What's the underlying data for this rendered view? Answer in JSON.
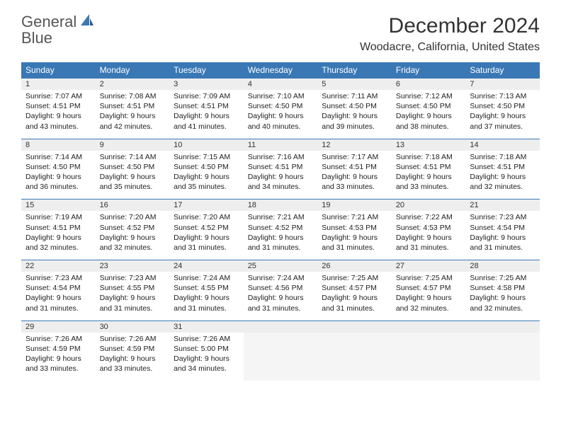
{
  "logo": {
    "word1": "General",
    "word2": "Blue"
  },
  "title": "December 2024",
  "location": "Woodacre, California, United States",
  "columns": [
    "Sunday",
    "Monday",
    "Tuesday",
    "Wednesday",
    "Thursday",
    "Friday",
    "Saturday"
  ],
  "colors": {
    "header_bg": "#3a78b5",
    "header_text": "#ffffff",
    "daynum_bg": "#eeeeee",
    "border": "#3a78b5",
    "text": "#222222",
    "logo_gray": "#555555",
    "logo_blue": "#3a78b5",
    "empty_bg": "#f5f5f5"
  },
  "weeks": [
    [
      {
        "n": "1",
        "sr": "Sunrise: 7:07 AM",
        "ss": "Sunset: 4:51 PM",
        "dl": "Daylight: 9 hours and 43 minutes."
      },
      {
        "n": "2",
        "sr": "Sunrise: 7:08 AM",
        "ss": "Sunset: 4:51 PM",
        "dl": "Daylight: 9 hours and 42 minutes."
      },
      {
        "n": "3",
        "sr": "Sunrise: 7:09 AM",
        "ss": "Sunset: 4:51 PM",
        "dl": "Daylight: 9 hours and 41 minutes."
      },
      {
        "n": "4",
        "sr": "Sunrise: 7:10 AM",
        "ss": "Sunset: 4:50 PM",
        "dl": "Daylight: 9 hours and 40 minutes."
      },
      {
        "n": "5",
        "sr": "Sunrise: 7:11 AM",
        "ss": "Sunset: 4:50 PM",
        "dl": "Daylight: 9 hours and 39 minutes."
      },
      {
        "n": "6",
        "sr": "Sunrise: 7:12 AM",
        "ss": "Sunset: 4:50 PM",
        "dl": "Daylight: 9 hours and 38 minutes."
      },
      {
        "n": "7",
        "sr": "Sunrise: 7:13 AM",
        "ss": "Sunset: 4:50 PM",
        "dl": "Daylight: 9 hours and 37 minutes."
      }
    ],
    [
      {
        "n": "8",
        "sr": "Sunrise: 7:14 AM",
        "ss": "Sunset: 4:50 PM",
        "dl": "Daylight: 9 hours and 36 minutes."
      },
      {
        "n": "9",
        "sr": "Sunrise: 7:14 AM",
        "ss": "Sunset: 4:50 PM",
        "dl": "Daylight: 9 hours and 35 minutes."
      },
      {
        "n": "10",
        "sr": "Sunrise: 7:15 AM",
        "ss": "Sunset: 4:50 PM",
        "dl": "Daylight: 9 hours and 35 minutes."
      },
      {
        "n": "11",
        "sr": "Sunrise: 7:16 AM",
        "ss": "Sunset: 4:51 PM",
        "dl": "Daylight: 9 hours and 34 minutes."
      },
      {
        "n": "12",
        "sr": "Sunrise: 7:17 AM",
        "ss": "Sunset: 4:51 PM",
        "dl": "Daylight: 9 hours and 33 minutes."
      },
      {
        "n": "13",
        "sr": "Sunrise: 7:18 AM",
        "ss": "Sunset: 4:51 PM",
        "dl": "Daylight: 9 hours and 33 minutes."
      },
      {
        "n": "14",
        "sr": "Sunrise: 7:18 AM",
        "ss": "Sunset: 4:51 PM",
        "dl": "Daylight: 9 hours and 32 minutes."
      }
    ],
    [
      {
        "n": "15",
        "sr": "Sunrise: 7:19 AM",
        "ss": "Sunset: 4:51 PM",
        "dl": "Daylight: 9 hours and 32 minutes."
      },
      {
        "n": "16",
        "sr": "Sunrise: 7:20 AM",
        "ss": "Sunset: 4:52 PM",
        "dl": "Daylight: 9 hours and 32 minutes."
      },
      {
        "n": "17",
        "sr": "Sunrise: 7:20 AM",
        "ss": "Sunset: 4:52 PM",
        "dl": "Daylight: 9 hours and 31 minutes."
      },
      {
        "n": "18",
        "sr": "Sunrise: 7:21 AM",
        "ss": "Sunset: 4:52 PM",
        "dl": "Daylight: 9 hours and 31 minutes."
      },
      {
        "n": "19",
        "sr": "Sunrise: 7:21 AM",
        "ss": "Sunset: 4:53 PM",
        "dl": "Daylight: 9 hours and 31 minutes."
      },
      {
        "n": "20",
        "sr": "Sunrise: 7:22 AM",
        "ss": "Sunset: 4:53 PM",
        "dl": "Daylight: 9 hours and 31 minutes."
      },
      {
        "n": "21",
        "sr": "Sunrise: 7:23 AM",
        "ss": "Sunset: 4:54 PM",
        "dl": "Daylight: 9 hours and 31 minutes."
      }
    ],
    [
      {
        "n": "22",
        "sr": "Sunrise: 7:23 AM",
        "ss": "Sunset: 4:54 PM",
        "dl": "Daylight: 9 hours and 31 minutes."
      },
      {
        "n": "23",
        "sr": "Sunrise: 7:23 AM",
        "ss": "Sunset: 4:55 PM",
        "dl": "Daylight: 9 hours and 31 minutes."
      },
      {
        "n": "24",
        "sr": "Sunrise: 7:24 AM",
        "ss": "Sunset: 4:55 PM",
        "dl": "Daylight: 9 hours and 31 minutes."
      },
      {
        "n": "25",
        "sr": "Sunrise: 7:24 AM",
        "ss": "Sunset: 4:56 PM",
        "dl": "Daylight: 9 hours and 31 minutes."
      },
      {
        "n": "26",
        "sr": "Sunrise: 7:25 AM",
        "ss": "Sunset: 4:57 PM",
        "dl": "Daylight: 9 hours and 31 minutes."
      },
      {
        "n": "27",
        "sr": "Sunrise: 7:25 AM",
        "ss": "Sunset: 4:57 PM",
        "dl": "Daylight: 9 hours and 32 minutes."
      },
      {
        "n": "28",
        "sr": "Sunrise: 7:25 AM",
        "ss": "Sunset: 4:58 PM",
        "dl": "Daylight: 9 hours and 32 minutes."
      }
    ],
    [
      {
        "n": "29",
        "sr": "Sunrise: 7:26 AM",
        "ss": "Sunset: 4:59 PM",
        "dl": "Daylight: 9 hours and 33 minutes."
      },
      {
        "n": "30",
        "sr": "Sunrise: 7:26 AM",
        "ss": "Sunset: 4:59 PM",
        "dl": "Daylight: 9 hours and 33 minutes."
      },
      {
        "n": "31",
        "sr": "Sunrise: 7:26 AM",
        "ss": "Sunset: 5:00 PM",
        "dl": "Daylight: 9 hours and 34 minutes."
      },
      null,
      null,
      null,
      null
    ]
  ]
}
